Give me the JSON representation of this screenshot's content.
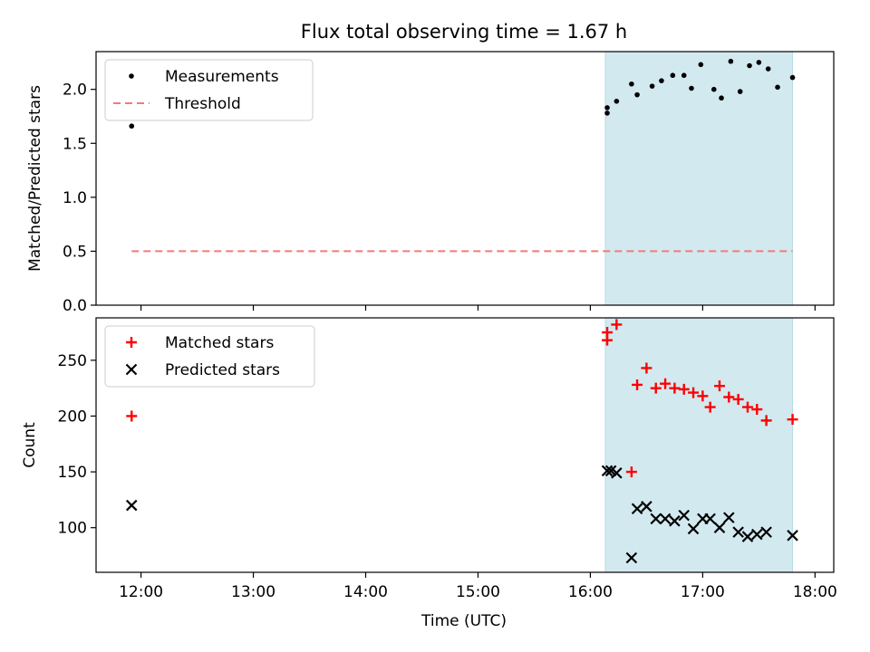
{
  "figure": {
    "title": "Flux total observing time = 1.67 h",
    "xlabel": "Time (UTC)",
    "x_ticks": [
      "12:00",
      "13:00",
      "14:00",
      "15:00",
      "16:00",
      "17:00",
      "18:00"
    ]
  },
  "colors": {
    "measurement": "#000000",
    "threshold": "#f47a7a",
    "matched": "#ff0000",
    "predicted": "#000000",
    "span_fill": "#d3e9f0",
    "span_edge": "#b7dbe6"
  },
  "chart_data": [
    {
      "type": "scatter",
      "panel": "top",
      "ylabel": "Matched/Predicted stars",
      "xlim": [
        "11:36",
        "18:10"
      ],
      "ylim": [
        0,
        2.35
      ],
      "y_ticks": [
        "0.0",
        "0.5",
        "1.0",
        "1.5",
        "2.0"
      ],
      "y_tick_values": [
        0,
        0.5,
        1.0,
        1.5,
        2.0
      ],
      "show_x_tick_labels": false,
      "legend_position": "upper left",
      "shaded_span": [
        "16:08",
        "17:48"
      ],
      "series": [
        {
          "name": "Measurements",
          "marker": "dot",
          "points": [
            [
              "11:55",
              1.66
            ],
            [
              "16:09",
              1.83
            ],
            [
              "16:09",
              1.78
            ],
            [
              "16:14",
              1.89
            ],
            [
              "16:22",
              2.05
            ],
            [
              "16:25",
              1.95
            ],
            [
              "16:33",
              2.03
            ],
            [
              "16:38",
              2.08
            ],
            [
              "16:44",
              2.13
            ],
            [
              "16:50",
              2.13
            ],
            [
              "16:54",
              2.01
            ],
            [
              "16:59",
              2.23
            ],
            [
              "17:06",
              2.0
            ],
            [
              "17:10",
              1.92
            ],
            [
              "17:15",
              2.26
            ],
            [
              "17:20",
              1.98
            ],
            [
              "17:25",
              2.22
            ],
            [
              "17:30",
              2.25
            ],
            [
              "17:35",
              2.19
            ],
            [
              "17:40",
              2.02
            ],
            [
              "17:48",
              2.11
            ]
          ]
        },
        {
          "name": "Threshold",
          "marker": "dashed-line",
          "points": [
            [
              "11:55",
              0.5
            ],
            [
              "17:48",
              0.5
            ]
          ]
        }
      ]
    },
    {
      "type": "scatter",
      "panel": "bottom",
      "ylabel": "Count",
      "xlim": [
        "11:36",
        "18:10"
      ],
      "ylim": [
        60,
        288
      ],
      "y_ticks": [
        "100",
        "150",
        "200",
        "250"
      ],
      "y_tick_values": [
        100,
        150,
        200,
        250
      ],
      "show_x_tick_labels": true,
      "legend_position": "upper left",
      "shaded_span": [
        "16:08",
        "17:48"
      ],
      "series": [
        {
          "name": "Matched stars",
          "marker": "plus",
          "points": [
            [
              "11:55",
              200
            ],
            [
              "16:09",
              275
            ],
            [
              "16:09",
              268
            ],
            [
              "16:14",
              282
            ],
            [
              "16:22",
              150
            ],
            [
              "16:25",
              228
            ],
            [
              "16:30",
              243
            ],
            [
              "16:35",
              225
            ],
            [
              "16:40",
              229
            ],
            [
              "16:45",
              225
            ],
            [
              "16:50",
              224
            ],
            [
              "16:55",
              221
            ],
            [
              "17:00",
              218
            ],
            [
              "17:04",
              208
            ],
            [
              "17:09",
              227
            ],
            [
              "17:14",
              217
            ],
            [
              "17:19",
              215
            ],
            [
              "17:24",
              208
            ],
            [
              "17:29",
              206
            ],
            [
              "17:34",
              196
            ],
            [
              "17:48",
              197
            ]
          ]
        },
        {
          "name": "Predicted stars",
          "marker": "x",
          "points": [
            [
              "11:55",
              120
            ],
            [
              "16:09",
              151
            ],
            [
              "16:11",
              151
            ],
            [
              "16:14",
              149
            ],
            [
              "16:22",
              73
            ],
            [
              "16:25",
              117
            ],
            [
              "16:30",
              119
            ],
            [
              "16:35",
              108
            ],
            [
              "16:40",
              108
            ],
            [
              "16:45",
              106
            ],
            [
              "16:50",
              111
            ],
            [
              "16:55",
              99
            ],
            [
              "17:00",
              108
            ],
            [
              "17:04",
              108
            ],
            [
              "17:09",
              100
            ],
            [
              "17:14",
              109
            ],
            [
              "17:19",
              96
            ],
            [
              "17:24",
              92
            ],
            [
              "17:29",
              94
            ],
            [
              "17:34",
              96
            ],
            [
              "17:48",
              93
            ]
          ]
        }
      ]
    }
  ]
}
